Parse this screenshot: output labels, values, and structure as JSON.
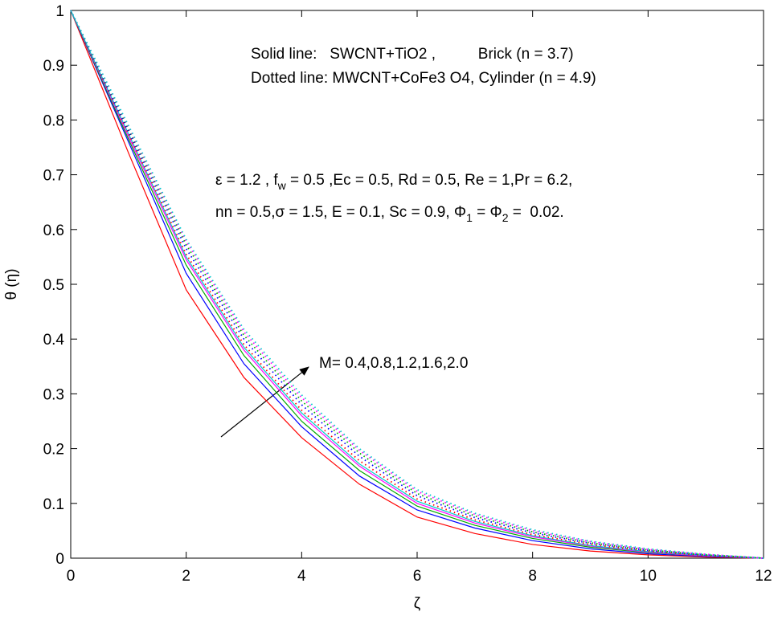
{
  "chart_data": {
    "type": "line",
    "xlabel": "ζ",
    "ylabel": "θ (η)",
    "xlim": [
      0,
      12
    ],
    "ylim": [
      0,
      1
    ],
    "xticks": [
      0,
      2,
      4,
      6,
      8,
      10,
      12
    ],
    "yticks": [
      0,
      0.1,
      0.2,
      0.3,
      0.4,
      0.5,
      0.6,
      0.7,
      0.8,
      0.9,
      1
    ],
    "grid": false,
    "legend_text": [
      "Solid line:   SWCNT+TiO2 ,          Brick (n = 3.7)",
      "Dotted line: MWCNT+CoFe3 O4, Cylinder (n = 4.9)"
    ],
    "params": [
      [
        "ε = 1.2 , f",
        "w",
        " = 0.5 ,Ec = 0.5, Rd = 0.5, Re = 1,Pr = 6.2,"
      ],
      [
        "nn = 0.5,σ = 1.5, E = 0.1, Sc = 0.9, Φ",
        "1",
        " = Φ",
        "2",
        " =  0.02."
      ]
    ],
    "arrow_label": "M= 0.4,0.8,1.2,1.6,2.0",
    "x": [
      0,
      1,
      2,
      3,
      4,
      5,
      6,
      7,
      8,
      9,
      10,
      11,
      12
    ],
    "series": [
      {
        "color": "#ff0000",
        "style": "solid",
        "values": [
          1,
          0.74,
          0.49,
          0.33,
          0.22,
          0.135,
          0.075,
          0.045,
          0.025,
          0.013,
          0.006,
          0.002,
          0
        ]
      },
      {
        "color": "#0000ff",
        "style": "solid",
        "values": [
          1,
          0.76,
          0.52,
          0.355,
          0.24,
          0.15,
          0.088,
          0.055,
          0.032,
          0.017,
          0.008,
          0.003,
          0
        ]
      },
      {
        "color": "#00aa00",
        "style": "solid",
        "values": [
          1,
          0.765,
          0.535,
          0.37,
          0.25,
          0.16,
          0.095,
          0.06,
          0.036,
          0.02,
          0.01,
          0.004,
          0
        ]
      },
      {
        "color": "#ff00ff",
        "style": "solid",
        "values": [
          1,
          0.77,
          0.545,
          0.38,
          0.26,
          0.168,
          0.1,
          0.064,
          0.039,
          0.022,
          0.011,
          0.004,
          0
        ]
      },
      {
        "color": "#00cccc",
        "style": "solid",
        "values": [
          1,
          0.775,
          0.55,
          0.385,
          0.265,
          0.172,
          0.104,
          0.067,
          0.041,
          0.023,
          0.012,
          0.005,
          0
        ]
      },
      {
        "color": "#ff0000",
        "style": "dotted",
        "values": [
          1,
          0.775,
          0.555,
          0.39,
          0.27,
          0.178,
          0.108,
          0.07,
          0.043,
          0.025,
          0.013,
          0.005,
          0
        ]
      },
      {
        "color": "#0000ff",
        "style": "dotted",
        "values": [
          1,
          0.78,
          0.565,
          0.4,
          0.28,
          0.186,
          0.114,
          0.074,
          0.046,
          0.027,
          0.014,
          0.006,
          0
        ]
      },
      {
        "color": "#00aa00",
        "style": "dotted",
        "values": [
          1,
          0.785,
          0.572,
          0.407,
          0.287,
          0.192,
          0.118,
          0.077,
          0.048,
          0.028,
          0.015,
          0.006,
          0
        ]
      },
      {
        "color": "#ff00ff",
        "style": "dotted",
        "values": [
          1,
          0.788,
          0.578,
          0.413,
          0.293,
          0.197,
          0.122,
          0.08,
          0.05,
          0.03,
          0.016,
          0.007,
          0
        ]
      },
      {
        "color": "#00cccc",
        "style": "dotted",
        "values": [
          1,
          0.79,
          0.582,
          0.418,
          0.298,
          0.2,
          0.125,
          0.082,
          0.052,
          0.031,
          0.017,
          0.007,
          0
        ]
      }
    ]
  }
}
